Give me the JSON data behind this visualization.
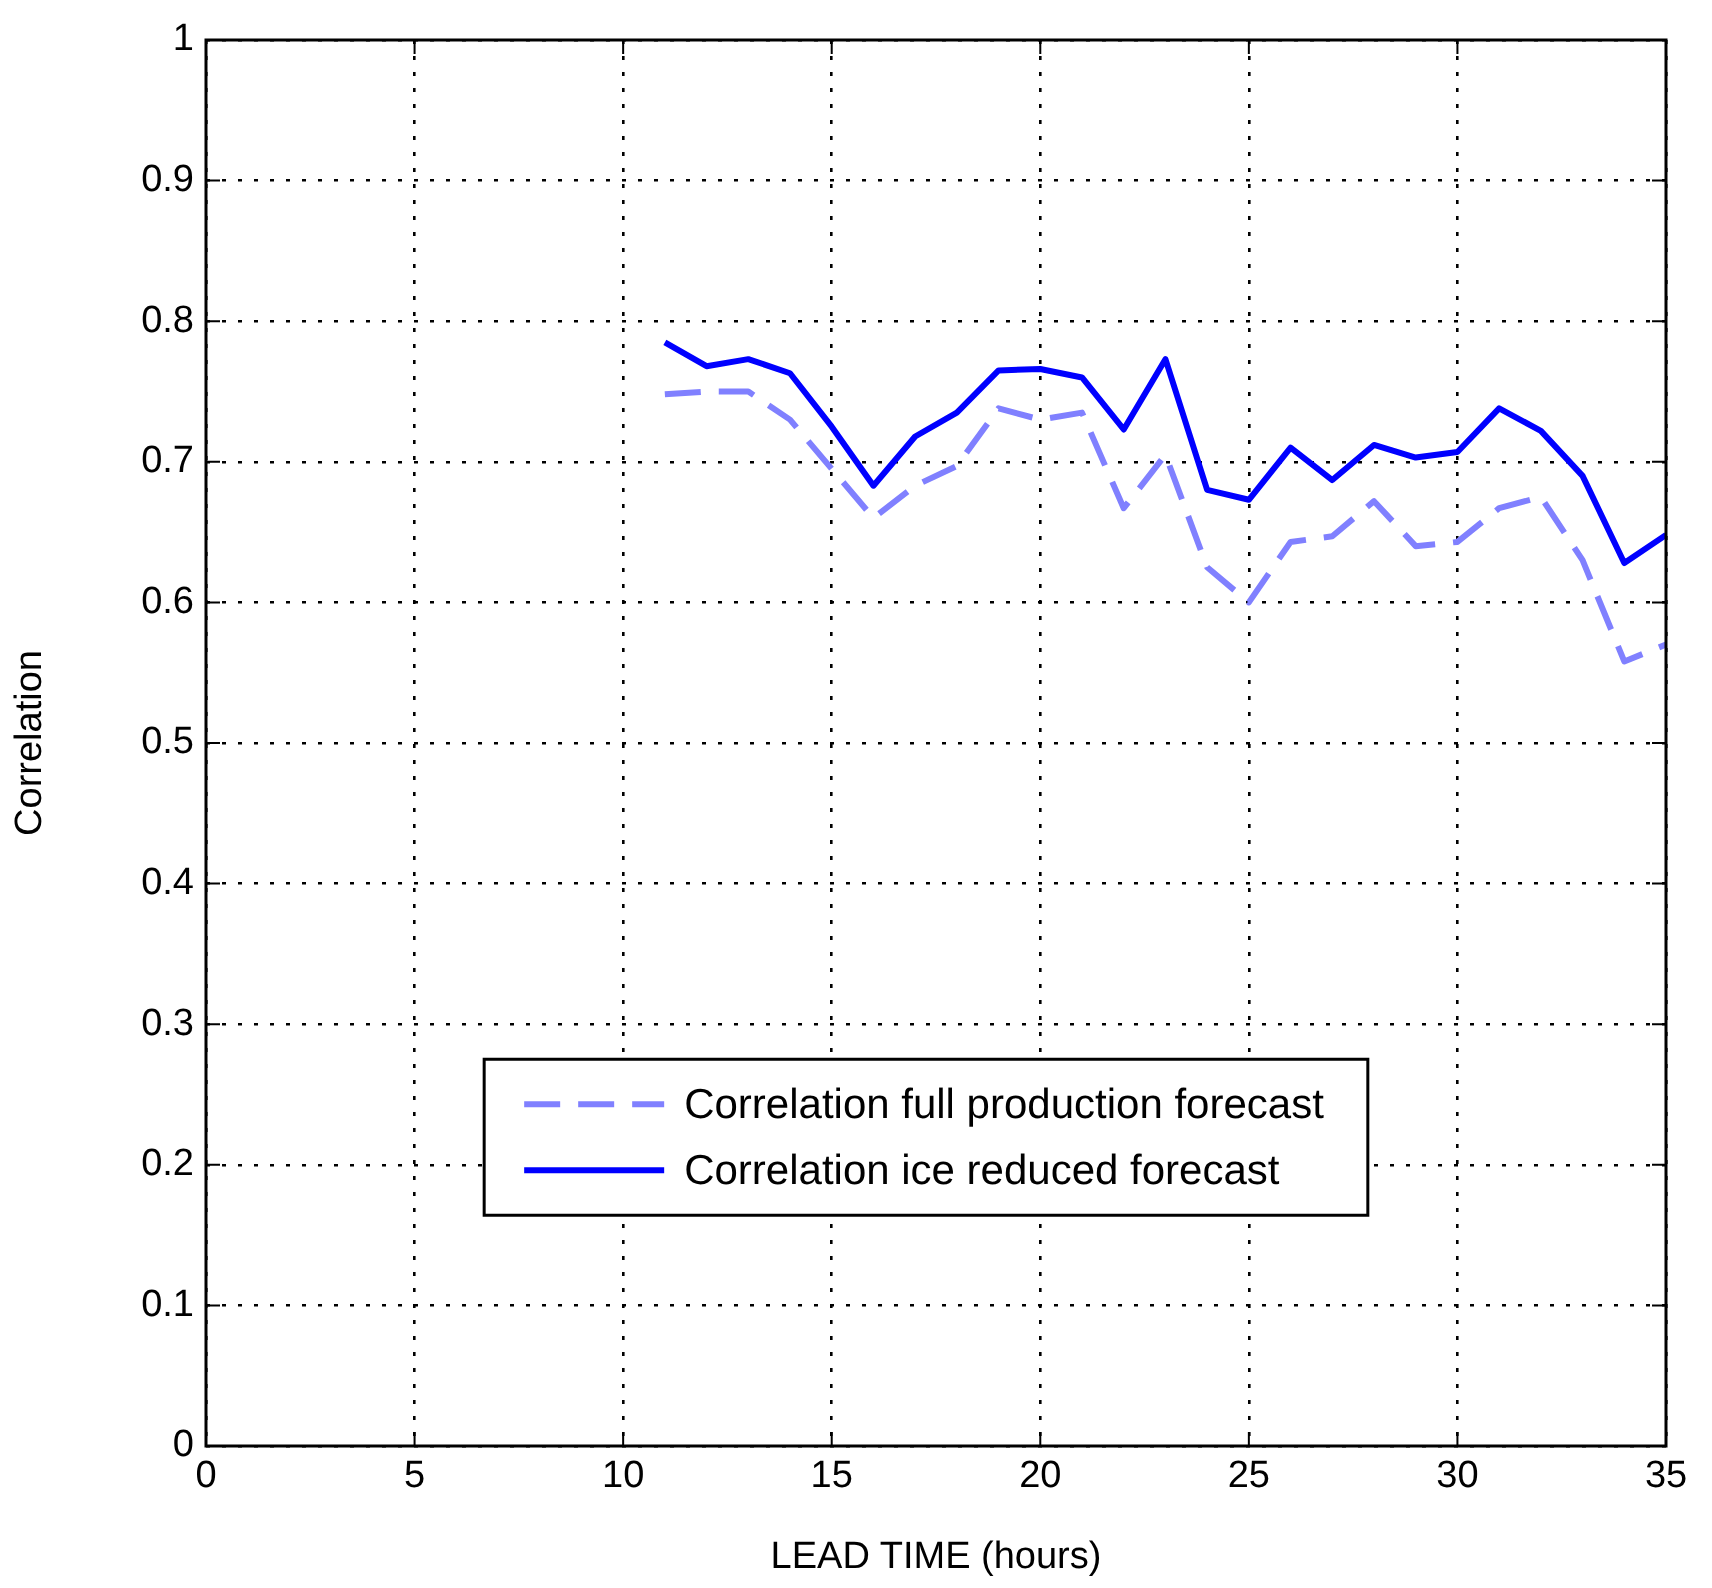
{
  "chart_data": {
    "type": "line",
    "xlabel": "LEAD TIME (hours)",
    "ylabel": "Correlation",
    "x": [
      11,
      12,
      13,
      14,
      15,
      16,
      17,
      18,
      19,
      20,
      21,
      22,
      23,
      24,
      25,
      26,
      27,
      28,
      29,
      30,
      31,
      32,
      33,
      34,
      35
    ],
    "series": [
      {
        "name": "Correlation full production forecast",
        "color": "#8080ff",
        "line_style": "dashed",
        "values": [
          0.748,
          0.75,
          0.75,
          0.73,
          0.695,
          0.66,
          0.683,
          0.697,
          0.738,
          0.73,
          0.735,
          0.667,
          0.705,
          0.625,
          0.6,
          0.643,
          0.647,
          0.672,
          0.64,
          0.643,
          0.667,
          0.675,
          0.63,
          0.558,
          0.57
        ]
      },
      {
        "name": "Correlation ice reduced forecast",
        "color": "#0000ff",
        "line_style": "solid",
        "values": [
          0.785,
          0.768,
          0.773,
          0.763,
          0.725,
          0.683,
          0.718,
          0.735,
          0.765,
          0.766,
          0.76,
          0.723,
          0.773,
          0.68,
          0.673,
          0.71,
          0.687,
          0.712,
          0.703,
          0.707,
          0.738,
          0.722,
          0.69,
          0.628,
          0.648
        ]
      }
    ],
    "xlim": [
      0,
      35
    ],
    "xticks": [
      0,
      5,
      10,
      15,
      20,
      25,
      30,
      35
    ],
    "ylim": [
      0,
      1
    ],
    "yticks": [
      0,
      0.1,
      0.2,
      0.3,
      0.4,
      0.5,
      0.6,
      0.7,
      0.8,
      0.9,
      1
    ],
    "grid": true,
    "legend": "bottom",
    "marker": "none"
  }
}
